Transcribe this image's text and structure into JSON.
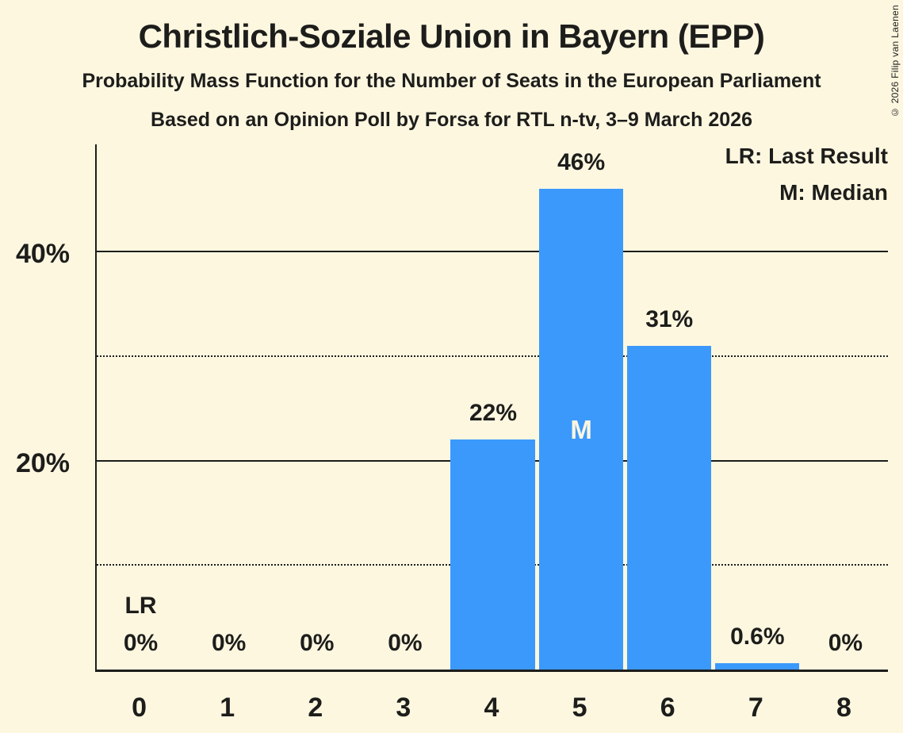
{
  "title": "Christlich-Soziale Union in Bayern (EPP)",
  "subtitle": "Probability Mass Function for the Number of Seats in the European Parliament",
  "source_line": "Based on an Opinion Poll by Forsa for RTL n-tv, 3–9 March 2026",
  "copyright": "© 2026 Filip van Laenen",
  "legend": {
    "last_result": "LR: Last Result",
    "median": "M: Median"
  },
  "colors": {
    "background": "#FDF7E0",
    "bar": "#3B99FC",
    "ink": "#1D1D1B",
    "median_label": "#FCF6DF"
  },
  "chart_data": {
    "type": "bar",
    "title": "Christlich-Soziale Union in Bayern (EPP)",
    "categories": [
      "0",
      "1",
      "2",
      "3",
      "4",
      "5",
      "6",
      "7",
      "8"
    ],
    "values": [
      0,
      0,
      0,
      0,
      22,
      46,
      31,
      0.6,
      0
    ],
    "value_labels": [
      "0%",
      "0%",
      "0%",
      "0%",
      "22%",
      "46%",
      "31%",
      "0.6%",
      "0%"
    ],
    "ylim": [
      0,
      50.5
    ],
    "y_ticks": [
      {
        "label": "20%",
        "pct": 20
      },
      {
        "label": "40%",
        "pct": 40
      }
    ],
    "gridlines": [
      {
        "pct": 10,
        "style": "dotted"
      },
      {
        "pct": 20,
        "style": "solid"
      },
      {
        "pct": 30,
        "style": "dotted"
      },
      {
        "pct": 40,
        "style": "solid"
      }
    ],
    "median_seat_index": 5,
    "median_marker": "M",
    "last_result_seat_index": 0,
    "last_result_marker": "LR",
    "legend_position": "top-right",
    "grid": "horizontal-only"
  }
}
